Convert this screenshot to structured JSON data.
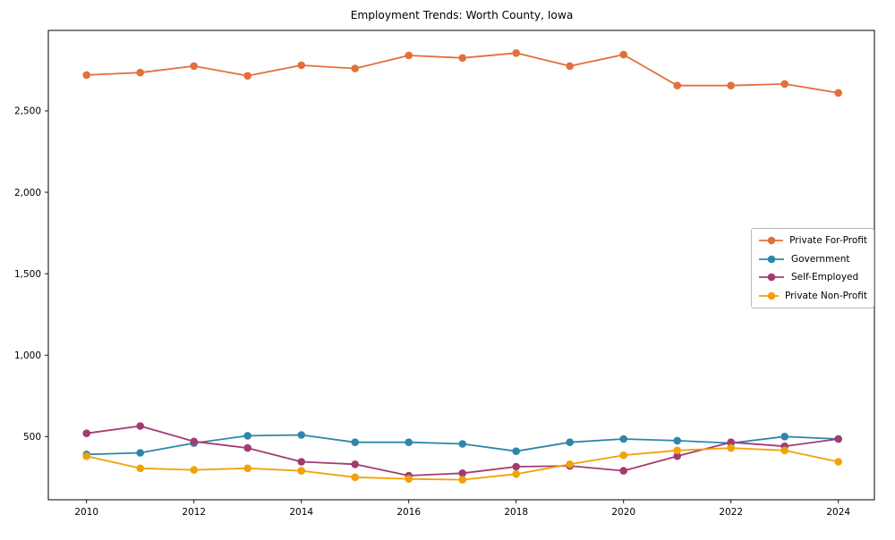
{
  "title": "Employment Trends: Worth County, Iowa",
  "chart_data": {
    "type": "line",
    "title": "Employment Trends: Worth County, Iowa",
    "x": [
      2010,
      2011,
      2012,
      2013,
      2014,
      2015,
      2016,
      2017,
      2018,
      2019,
      2020,
      2021,
      2022,
      2023,
      2024
    ],
    "xticks": [
      2010,
      2012,
      2014,
      2016,
      2018,
      2020,
      2022,
      2024
    ],
    "xtick_labels": [
      "2010",
      "2012",
      "2014",
      "2016",
      "2018",
      "2020",
      "2022",
      "2024"
    ],
    "yticks": [
      500,
      1000,
      1500,
      2000,
      2500
    ],
    "ytick_labels": [
      "500",
      "1,000",
      "1,500",
      "2,000",
      "2,500"
    ],
    "ylim": [
      110,
      2995
    ],
    "grid": false,
    "legend_position": "center right",
    "series": [
      {
        "name": "Private For-Profit",
        "color": "#E2703A",
        "values": [
          2720,
          2735,
          2775,
          2715,
          2780,
          2760,
          2840,
          2825,
          2855,
          2775,
          2845,
          2655,
          2655,
          2665,
          2610
        ]
      },
      {
        "name": "Government",
        "color": "#2E86AB",
        "values": [
          390,
          400,
          460,
          505,
          510,
          465,
          465,
          455,
          410,
          465,
          485,
          475,
          460,
          500,
          485
        ]
      },
      {
        "name": "Self-Employed",
        "color": "#A23B72",
        "values": [
          520,
          565,
          470,
          430,
          345,
          330,
          260,
          275,
          315,
          320,
          290,
          380,
          465,
          440,
          485
        ]
      },
      {
        "name": "Private Non-Profit",
        "color": "#F1A208",
        "values": [
          380,
          305,
          295,
          305,
          290,
          250,
          240,
          235,
          270,
          330,
          385,
          415,
          430,
          415,
          345
        ]
      }
    ]
  }
}
